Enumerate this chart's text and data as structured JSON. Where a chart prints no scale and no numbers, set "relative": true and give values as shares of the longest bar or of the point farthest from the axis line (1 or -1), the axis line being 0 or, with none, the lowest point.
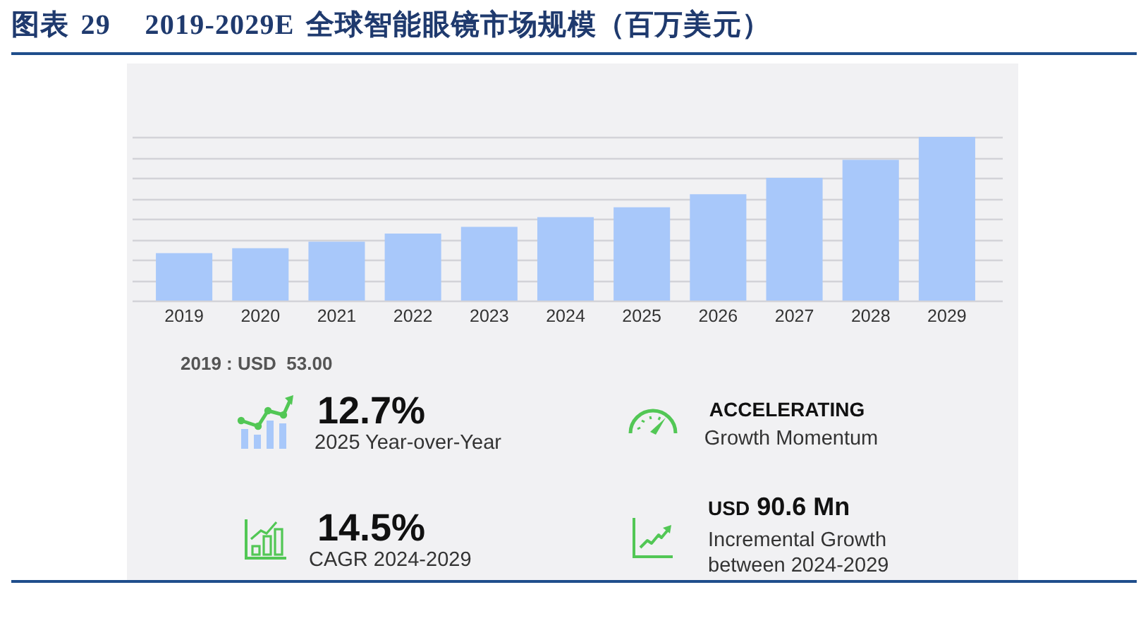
{
  "chart_data": {
    "type": "bar",
    "title": "图表 29   2019-2029E 全球智能眼镜市场规模（百万美元）",
    "categories": [
      "2019",
      "2020",
      "2021",
      "2022",
      "2023",
      "2024",
      "2025",
      "2026",
      "2027",
      "2028",
      "2029"
    ],
    "values": [
      0.29,
      0.32,
      0.36,
      0.41,
      0.45,
      0.51,
      0.57,
      0.65,
      0.75,
      0.86,
      1
    ],
    "color": "#a8c8fa",
    "relative": true,
    "grid": "y",
    "annotations": [
      "2019 : USD  53.00",
      "12.7%",
      "2025 Year-over-Year",
      "ACCELERATING",
      "Growth Momentum",
      "14.5%",
      "CAGR 2024-2029",
      "USD 90.6 Mn",
      "Incremental Growth between 2024-2029"
    ]
  }
}
